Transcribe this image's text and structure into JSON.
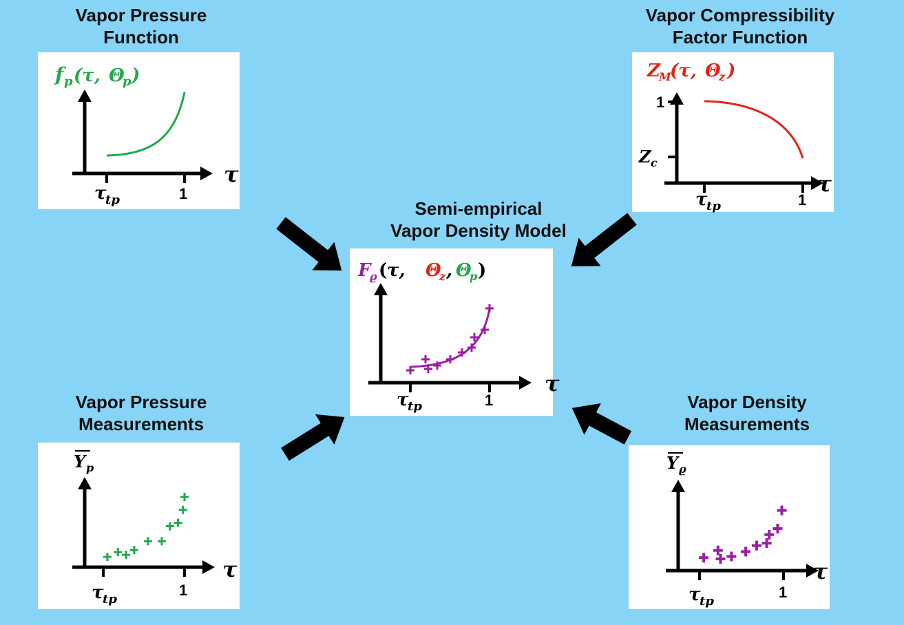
{
  "colors": {
    "background": "#88d4f7",
    "panel": "#ffffff",
    "axis": "#000000",
    "green": "#22a84a",
    "red": "#e2231a",
    "purple": "#9b1fa3"
  },
  "titles": {
    "vapor_pressure_function": [
      "Vapor Pressure",
      "Function"
    ],
    "vapor_compressibility_factor_function": [
      "Vapor Compressibility",
      "Factor Function"
    ],
    "semi_empirical_model": [
      "Semi-empirical",
      "Vapor Density Model"
    ],
    "vapor_pressure_measurements": [
      "Vapor Pressure",
      "Measurements"
    ],
    "vapor_density_measurements": [
      "Vapor Density",
      "Measurements"
    ]
  },
  "panels": {
    "top_left": {
      "func_letter": "f",
      "func_sub": "p",
      "func_args_open": "(τ, ",
      "func_theta": "Θ",
      "func_theta_sub": "p",
      "func_close": ")",
      "x_axis_label": "τ",
      "x_tick_left": "τ",
      "x_tick_left_sub": "tp",
      "x_tick_right": "1"
    },
    "top_right": {
      "func_letter": "Z",
      "func_sub": "M",
      "func_args_open": "(τ, ",
      "func_theta": "Θ",
      "func_theta_sub": "z",
      "func_close": ")",
      "y_tick_top": "1",
      "y_tick_bottom": "Z",
      "y_tick_bottom_sub": "c",
      "x_axis_label": "τ",
      "x_tick_left": "τ",
      "x_tick_left_sub": "tp",
      "x_tick_right": "1"
    },
    "center": {
      "func_letter": "F",
      "func_sub": "ϱ",
      "func_open": "(",
      "func_tau": " τ, ",
      "func_theta_z": "Θ",
      "func_theta_z_sub": "z",
      "func_comma": ", ",
      "func_theta_p": "Θ",
      "func_theta_p_sub": "p",
      "func_close": ")",
      "x_axis_label": "τ",
      "x_tick_left": "τ",
      "x_tick_left_sub": "tp",
      "x_tick_right": "1"
    },
    "bottom_left": {
      "y_label": "Y",
      "y_label_sub": "p",
      "x_axis_label": "τ",
      "x_tick_left": "τ",
      "x_tick_left_sub": "tp",
      "x_tick_right": "1"
    },
    "bottom_right": {
      "y_label": "Y",
      "y_label_sub": "ϱ",
      "x_axis_label": "τ",
      "x_tick_left": "τ",
      "x_tick_left_sub": "tp",
      "x_tick_right": "1"
    }
  },
  "measurement_points": {
    "pressure": [
      {
        "tau": 0.05,
        "y": 0.05
      },
      {
        "tau": 0.18,
        "y": 0.12
      },
      {
        "tau": 0.28,
        "y": 0.08
      },
      {
        "tau": 0.38,
        "y": 0.15
      },
      {
        "tau": 0.55,
        "y": 0.28
      },
      {
        "tau": 0.72,
        "y": 0.28
      },
      {
        "tau": 0.82,
        "y": 0.5
      },
      {
        "tau": 0.92,
        "y": 0.55
      },
      {
        "tau": 0.98,
        "y": 0.74
      },
      {
        "tau": 1.0,
        "y": 0.93
      }
    ],
    "density": [
      {
        "tau": 0.05,
        "y": 0.1
      },
      {
        "tau": 0.22,
        "y": 0.22
      },
      {
        "tau": 0.25,
        "y": 0.08
      },
      {
        "tau": 0.38,
        "y": 0.12
      },
      {
        "tau": 0.55,
        "y": 0.2
      },
      {
        "tau": 0.68,
        "y": 0.3
      },
      {
        "tau": 0.8,
        "y": 0.34
      },
      {
        "tau": 0.83,
        "y": 0.48
      },
      {
        "tau": 0.93,
        "y": 0.58
      },
      {
        "tau": 0.98,
        "y": 0.88
      }
    ]
  }
}
